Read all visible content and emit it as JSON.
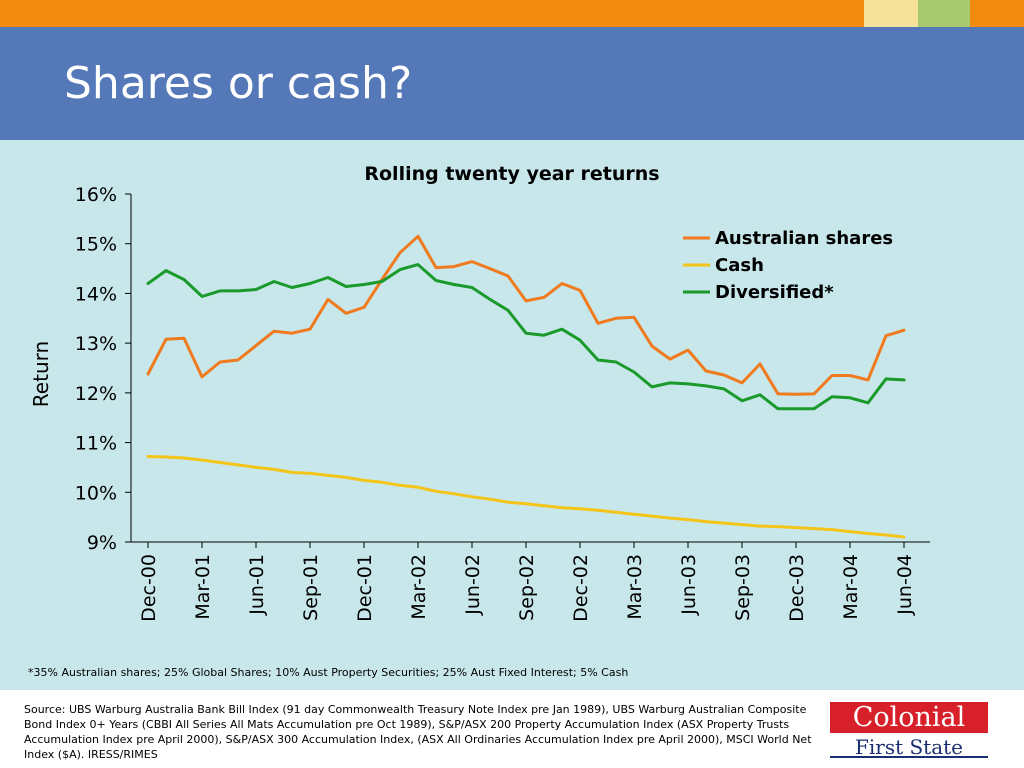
{
  "slide": {
    "title": "Shares or cash?",
    "footnote": "*35% Australian shares; 25% Global Shares; 10% Aust Property Securities; 25% Aust Fixed Interest; 5% Cash",
    "source": "Source: UBS Warburg Australia Bank Bill Index (91 day Commonwealth Treasury Note Index pre Jan 1989), UBS Warburg Australian Composite Bond Index 0+ Years (CBBI All Series All Mats Accumulation pre Oct 1989), S&P/ASX 200 Property Accumulation Index (ASX Property Trusts Accumulation Index pre April 2000), S&P/ASX 300 Accumulation Index, (ASX All Ordinaries Accumulation Index pre April 2000), MSCI World Net Index ($A). IRESS/RIMES",
    "logo": {
      "line1": "Colonial",
      "line2": "First State"
    }
  },
  "colors": {
    "accent_orange": "#f28c0f",
    "header_blue": "#5478b8",
    "chart_bg": "#c8e7ea",
    "brand_red": "#d7202a",
    "brand_navy": "#1a2f6f"
  },
  "chart_data": {
    "type": "line",
    "title": "Rolling twenty year returns",
    "ylabel": "Return",
    "xlabel": "",
    "ylim": [
      9,
      16
    ],
    "yticks": [
      "9%",
      "10%",
      "11%",
      "12%",
      "13%",
      "14%",
      "15%",
      "16%"
    ],
    "x_tick_labels": [
      "Dec-00",
      "Mar-01",
      "Jun-01",
      "Sep-01",
      "Dec-01",
      "Mar-02",
      "Jun-02",
      "Sep-02",
      "Dec-02",
      "Mar-03",
      "Jun-03",
      "Sep-03",
      "Dec-03",
      "Mar-04",
      "Jun-04"
    ],
    "legend_position": "top-right",
    "grid": false,
    "x": [
      "Dec-00",
      "Jan-01",
      "Feb-01",
      "Mar-01",
      "Apr-01",
      "May-01",
      "Jun-01",
      "Jul-01",
      "Aug-01",
      "Sep-01",
      "Oct-01",
      "Nov-01",
      "Dec-01",
      "Jan-02",
      "Feb-02",
      "Mar-02",
      "Apr-02",
      "May-02",
      "Jun-02",
      "Jul-02",
      "Aug-02",
      "Sep-02",
      "Oct-02",
      "Nov-02",
      "Dec-02",
      "Jan-03",
      "Feb-03",
      "Mar-03",
      "Apr-03",
      "May-03",
      "Jun-03",
      "Jul-03",
      "Aug-03",
      "Sep-03",
      "Oct-03",
      "Nov-03",
      "Dec-03",
      "Jan-04",
      "Feb-04",
      "Mar-04",
      "Apr-04",
      "May-04",
      "Jun-04"
    ],
    "series": [
      {
        "name": "Australian shares",
        "color": "#f07a1e",
        "values": [
          12.38,
          13.08,
          13.1,
          12.32,
          12.62,
          12.66,
          12.95,
          13.24,
          13.2,
          13.28,
          13.88,
          13.6,
          13.72,
          14.28,
          14.82,
          15.15,
          14.52,
          14.54,
          14.64,
          14.5,
          14.35,
          13.85,
          13.92,
          14.2,
          14.06,
          13.4,
          13.5,
          13.52,
          12.94,
          12.68,
          12.86,
          12.44,
          12.36,
          12.2,
          12.58,
          11.98,
          11.97,
          11.98,
          12.35,
          12.35,
          12.26,
          13.15,
          13.26
        ]
      },
      {
        "name": "Cash",
        "color": "#f5c418",
        "values": [
          10.72,
          10.71,
          10.69,
          10.65,
          10.6,
          10.55,
          10.5,
          10.46,
          10.4,
          10.38,
          10.34,
          10.3,
          10.24,
          10.2,
          10.14,
          10.1,
          10.02,
          9.97,
          9.91,
          9.86,
          9.8,
          9.77,
          9.73,
          9.69,
          9.67,
          9.64,
          9.6,
          9.56,
          9.52,
          9.48,
          9.45,
          9.41,
          9.38,
          9.35,
          9.32,
          9.31,
          9.29,
          9.27,
          9.25,
          9.21,
          9.17,
          9.14,
          9.1
        ]
      },
      {
        "name": "Diversified*",
        "color": "#1a9a2a",
        "values": [
          14.2,
          14.46,
          14.28,
          13.94,
          14.05,
          14.05,
          14.08,
          14.24,
          14.12,
          14.2,
          14.32,
          14.14,
          14.18,
          14.24,
          14.48,
          14.58,
          14.26,
          14.18,
          14.12,
          13.88,
          13.66,
          13.2,
          13.16,
          13.28,
          13.06,
          12.66,
          12.62,
          12.42,
          12.12,
          12.2,
          12.18,
          12.14,
          12.08,
          11.84,
          11.96,
          11.68,
          11.68,
          11.68,
          11.92,
          11.9,
          11.8,
          12.28,
          12.26
        ]
      }
    ]
  }
}
